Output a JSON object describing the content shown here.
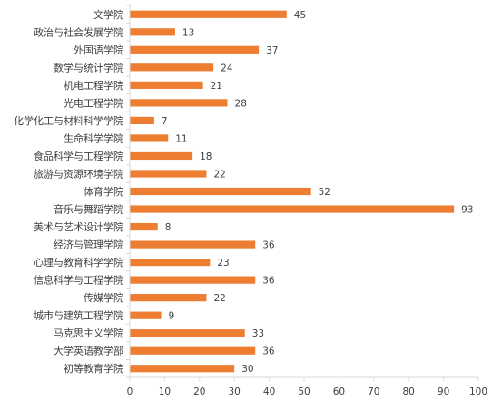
{
  "chart_data": {
    "type": "bar",
    "orientation": "horizontal",
    "categories": [
      "文学院",
      "政治与社会发展学院",
      "外国语学院",
      "数学与统计学院",
      "机电工程学院",
      "光电工程学院",
      "化学化工与材料科学学院",
      "生命科学学院",
      "食品科学与工程学院",
      "旅游与资源环境学院",
      "体育学院",
      "音乐与舞蹈学院",
      "美术与艺术设计学院",
      "经济与管理学院",
      "心理与教育科学学院",
      "信息科学与工程学院",
      "传媒学院",
      "城市与建筑工程学院",
      "马克思主义学院",
      "大学英语教学部",
      "初等教育学院"
    ],
    "values": [
      45,
      13,
      37,
      24,
      21,
      28,
      7,
      11,
      18,
      22,
      52,
      93,
      8,
      36,
      23,
      36,
      22,
      9,
      33,
      36,
      30
    ],
    "value_labels": [
      "45",
      "13",
      "37",
      "24",
      "21",
      "28",
      "7",
      "11",
      "18",
      "22",
      "52",
      "93",
      "8",
      "36",
      "23",
      "36",
      "22",
      "9",
      "33",
      "36",
      "30"
    ],
    "xlim": [
      0,
      100
    ],
    "xticks": [
      0,
      10,
      20,
      30,
      40,
      50,
      60,
      70,
      80,
      90,
      100
    ],
    "xtick_labels": [
      "0",
      "10",
      "20",
      "30",
      "40",
      "50",
      "60",
      "70",
      "80",
      "90",
      "100"
    ],
    "title": "",
    "xlabel": "",
    "ylabel": "",
    "grid": false,
    "legend": "none",
    "colors": {
      "bar": "#ED7D31",
      "axis": "#D9D9D9",
      "text": "#404040"
    }
  }
}
